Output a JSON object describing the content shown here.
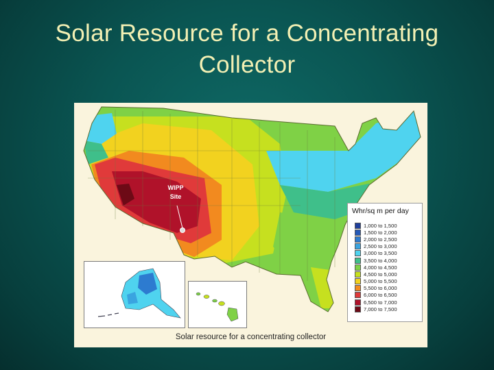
{
  "slide": {
    "title": "Solar Resource for a Concentrating Collector"
  },
  "map": {
    "caption": "Solar resource for a concentrating collector",
    "marker": {
      "label": "WIPP Site"
    },
    "insets": [
      "Alaska",
      "Hawaii"
    ],
    "legend": {
      "title": "Whr/sq m per day",
      "items": [
        {
          "range": "1,000 to 1,500",
          "color": "#1f3f9c"
        },
        {
          "range": "1,500 to 2,000",
          "color": "#2459b8"
        },
        {
          "range": "2,000 to 2,500",
          "color": "#2d7bd0"
        },
        {
          "range": "2,500 to 3,000",
          "color": "#3aa4e0"
        },
        {
          "range": "3,000 to 3,500",
          "color": "#4fd3ef"
        },
        {
          "range": "3,500 to 4,000",
          "color": "#3fbf8a"
        },
        {
          "range": "4,000 to 4,500",
          "color": "#7fd146"
        },
        {
          "range": "4,500 to 5,000",
          "color": "#c6e01f"
        },
        {
          "range": "5,000 to 5,500",
          "color": "#f2d21f"
        },
        {
          "range": "5,500 to 6,000",
          "color": "#f28a1f"
        },
        {
          "range": "6,000 to 6,500",
          "color": "#e03a3a"
        },
        {
          "range": "6,500 to 7,000",
          "color": "#b0122a"
        },
        {
          "range": "7,000 to 7,500",
          "color": "#6d0a16"
        }
      ]
    }
  }
}
